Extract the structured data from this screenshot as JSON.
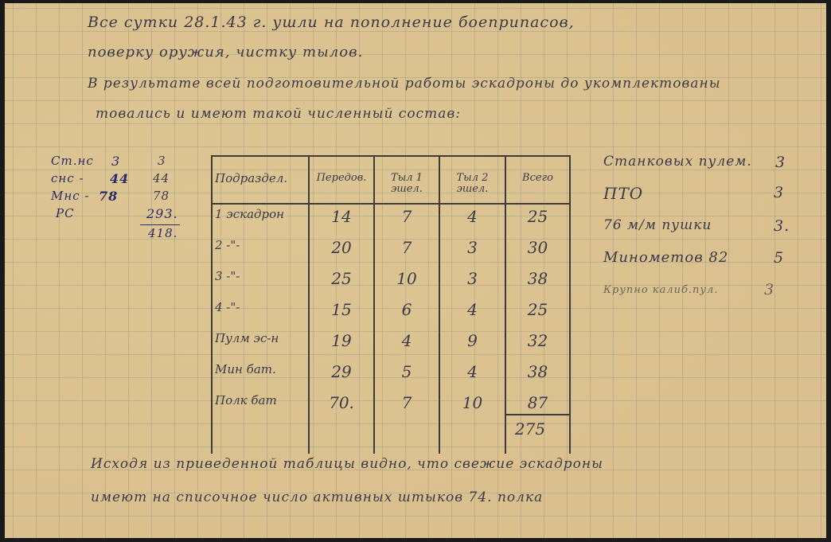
{
  "text_lines_top": [
    "Все сутки 28.1.43 г. ушли на пополнение боеприпасов,",
    "поверку оружия, чистку тылов.",
    "В результате всей подготовительной работы эскадроны до укомплектованы",
    "товались и имеют такой численный состав:"
  ],
  "left_notes": {
    "rows": [
      {
        "label": "Ст.нс",
        "value": "3",
        "total": "3"
      },
      {
        "label": "снс -",
        "value": "44",
        "total": "44"
      },
      {
        "label": "Мнс -",
        "value": "78",
        "total": "78"
      },
      {
        "label": "РС",
        "value": "",
        "total": "293."
      }
    ],
    "sum": "418."
  },
  "table": {
    "headers": [
      "Подраздел.",
      "Передов.",
      "Тыл 1 эшел.",
      "Тыл 2 эшел.",
      "Всего"
    ],
    "rows": [
      [
        "1 эскадрон",
        "14",
        "7",
        "4",
        "25"
      ],
      [
        "2 -\"-",
        "20",
        "7",
        "3",
        "30"
      ],
      [
        "3 -\"-",
        "25",
        "10",
        "3",
        "38"
      ],
      [
        "4 -\"-",
        "15",
        "6",
        "4",
        "25"
      ],
      [
        "Пулм эс-н",
        "19",
        "4",
        "9",
        "32"
      ],
      [
        "Мин бат.",
        "29",
        "5",
        "4",
        "38"
      ],
      [
        "Полк бат",
        "70.",
        "7",
        "10",
        "87"
      ]
    ],
    "total": "275"
  },
  "weapons": [
    {
      "label": "Станковых пулем.",
      "value": "3"
    },
    {
      "label": "ПТО",
      "value": "3"
    },
    {
      "label": "76 м/м пушки",
      "value": "3."
    },
    {
      "label": "Минометов 82",
      "value": "5"
    },
    {
      "label": "Крупно калиб.пул.",
      "value": "3"
    }
  ],
  "text_lines_bottom": [
    "Исходя из приведенной таблицы видно, что свежие эскадроны",
    "имеют на списочное число активных штыков 74. полка"
  ]
}
